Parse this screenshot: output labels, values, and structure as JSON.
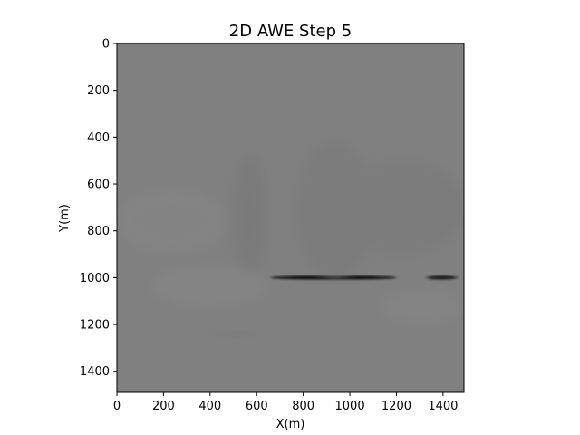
{
  "chart_data": {
    "type": "heatmap",
    "title": "2D AWE Step 5",
    "xlabel": "X(m)",
    "ylabel": "Y(m)",
    "xlim": [
      0,
      1490
    ],
    "ylim": [
      1490,
      0
    ],
    "x_ticks": [
      0,
      200,
      400,
      600,
      800,
      1000,
      1200,
      1400
    ],
    "y_ticks": [
      0,
      200,
      400,
      600,
      800,
      1000,
      1200,
      1400
    ],
    "colormap": "gray",
    "background_value_color": "#808080",
    "grid": false,
    "features": [
      {
        "kind": "strong-reflector",
        "x_start": 660,
        "x_end": 1200,
        "y": 1000,
        "color": "#111111"
      },
      {
        "kind": "strong-reflector",
        "x_start": 1330,
        "x_end": 1460,
        "y": 1000,
        "color": "#1a1a1a"
      },
      {
        "kind": "faint-dark-band",
        "x_start": 500,
        "x_end": 640,
        "y_start": 480,
        "y_end": 1000,
        "color": "#7a7a7a"
      },
      {
        "kind": "faint-dark-band",
        "x_start": 770,
        "x_end": 1100,
        "y_start": 420,
        "y_end": 1000,
        "color": "#7b7b7b"
      },
      {
        "kind": "faint-dark-band",
        "x_start": 960,
        "x_end": 1490,
        "y_start": 500,
        "y_end": 900,
        "color": "#7b7b7b"
      },
      {
        "kind": "faint-light-band",
        "x_start": 0,
        "x_end": 470,
        "y_start": 620,
        "y_end": 900,
        "color": "#848484"
      },
      {
        "kind": "faint-light-band",
        "x_start": 150,
        "x_end": 640,
        "y_start": 950,
        "y_end": 1120,
        "color": "#858585"
      },
      {
        "kind": "faint-light-band",
        "x_start": 1130,
        "x_end": 1490,
        "y_start": 1050,
        "y_end": 1200,
        "color": "#848484"
      },
      {
        "kind": "faint-dark-band",
        "x_start": 390,
        "x_end": 630,
        "y_start": 1230,
        "y_end": 1250,
        "color": "#7c7c7c"
      }
    ]
  }
}
